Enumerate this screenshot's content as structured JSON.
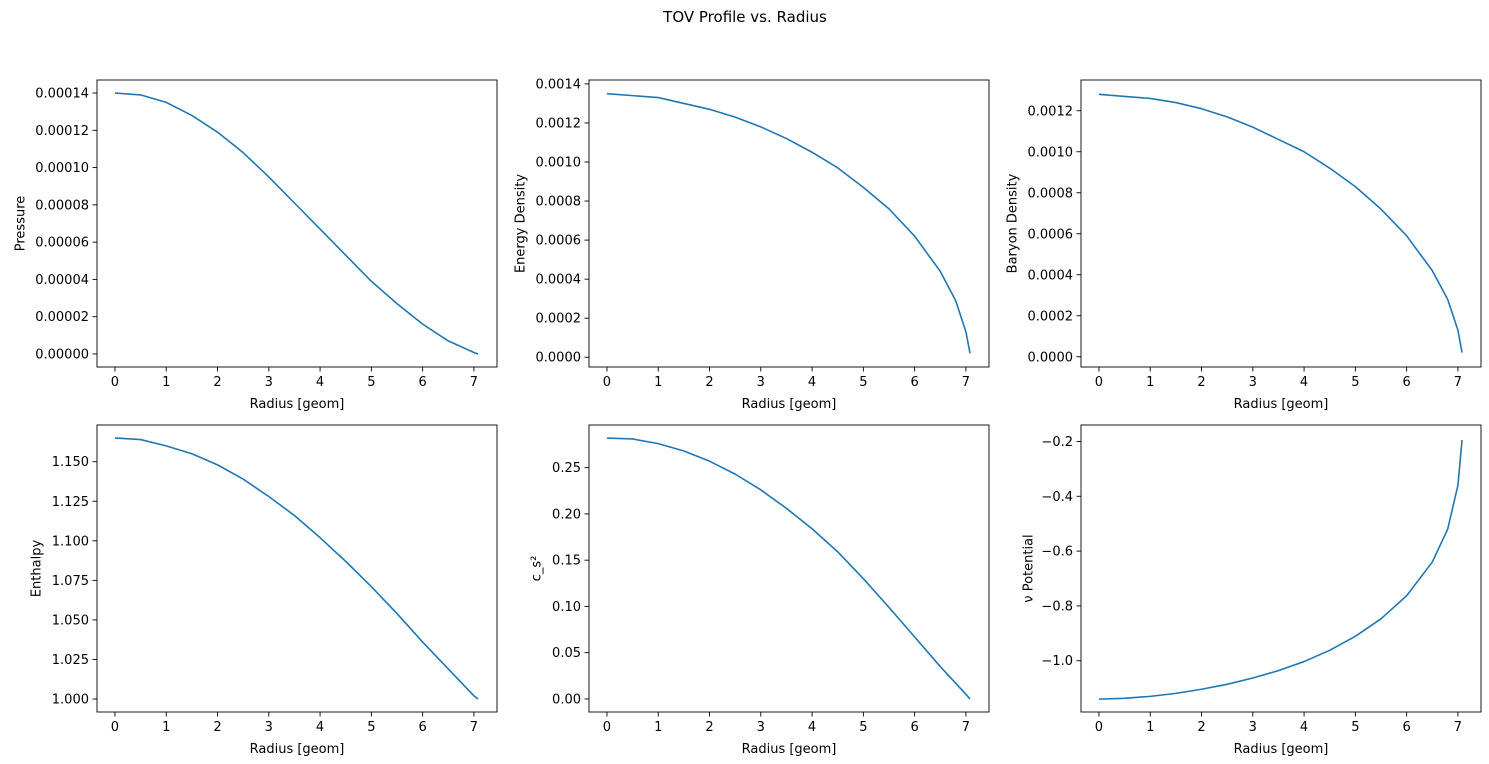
{
  "figure": {
    "suptitle": "TOV Profile vs. Radius",
    "line_color": "#1f77b4"
  },
  "chart_data": [
    {
      "type": "line",
      "title": "",
      "xlabel": "Radius [geom]",
      "ylabel": "Pressure",
      "xlim": [
        -0.35,
        7.45
      ],
      "ylim": [
        -7e-06,
        0.000147
      ],
      "xticks": [
        0,
        1,
        2,
        3,
        4,
        5,
        6,
        7
      ],
      "xtick_labels": [
        "0",
        "1",
        "2",
        "3",
        "4",
        "5",
        "6",
        "7"
      ],
      "yticks": [
        0,
        2e-05,
        4e-05,
        6e-05,
        8e-05,
        0.0001,
        0.00012,
        0.00014
      ],
      "ytick_labels": [
        "0.00000",
        "0.00002",
        "0.00004",
        "0.00006",
        "0.00008",
        "0.00010",
        "0.00012",
        "0.00014"
      ],
      "grid": false,
      "series": [
        {
          "x": [
            0,
            0.5,
            1,
            1.5,
            2,
            2.5,
            3,
            3.5,
            4,
            4.5,
            5,
            5.5,
            6,
            6.5,
            7,
            7.08
          ],
          "y": [
            0.00014,
            0.000139,
            0.000135,
            0.000128,
            0.000119,
            0.000108,
            9.5e-05,
            8.1e-05,
            6.7e-05,
            5.3e-05,
            3.9e-05,
            2.7e-05,
            1.6e-05,
            7e-06,
            8e-07,
            0.0
          ]
        }
      ]
    },
    {
      "type": "line",
      "title": "",
      "xlabel": "Radius [geom]",
      "ylabel": "Energy Density",
      "xlim": [
        -0.35,
        7.45
      ],
      "ylim": [
        -5e-05,
        0.00142
      ],
      "xticks": [
        0,
        1,
        2,
        3,
        4,
        5,
        6,
        7
      ],
      "xtick_labels": [
        "0",
        "1",
        "2",
        "3",
        "4",
        "5",
        "6",
        "7"
      ],
      "yticks": [
        0,
        0.0002,
        0.0004,
        0.0006,
        0.0008,
        0.001,
        0.0012,
        0.0014
      ],
      "ytick_labels": [
        "0.0000",
        "0.0002",
        "0.0004",
        "0.0006",
        "0.0008",
        "0.0010",
        "0.0012",
        "0.0014"
      ],
      "grid": false,
      "series": [
        {
          "x": [
            0,
            0.5,
            1,
            1.5,
            2,
            2.5,
            3,
            3.5,
            4,
            4.5,
            5,
            5.5,
            6,
            6.5,
            6.8,
            7.0,
            7.08
          ],
          "y": [
            0.00135,
            0.00134,
            0.00133,
            0.0013,
            0.00127,
            0.00123,
            0.00118,
            0.00112,
            0.00105,
            0.00097,
            0.00087,
            0.00076,
            0.00062,
            0.00044,
            0.00029,
            0.00013,
            2e-05
          ]
        }
      ]
    },
    {
      "type": "line",
      "title": "",
      "xlabel": "Radius [geom]",
      "ylabel": "Baryon Density",
      "xlim": [
        -0.35,
        7.45
      ],
      "ylim": [
        -5e-05,
        0.00135
      ],
      "xticks": [
        0,
        1,
        2,
        3,
        4,
        5,
        6,
        7
      ],
      "xtick_labels": [
        "0",
        "1",
        "2",
        "3",
        "4",
        "5",
        "6",
        "7"
      ],
      "yticks": [
        0,
        0.0002,
        0.0004,
        0.0006,
        0.0008,
        0.001,
        0.0012
      ],
      "ytick_labels": [
        "0.0000",
        "0.0002",
        "0.0004",
        "0.0006",
        "0.0008",
        "0.0010",
        "0.0012"
      ],
      "grid": false,
      "series": [
        {
          "x": [
            0,
            0.5,
            1,
            1.5,
            2,
            2.5,
            3,
            3.5,
            4,
            4.5,
            5,
            5.5,
            6,
            6.5,
            6.8,
            7.0,
            7.08
          ],
          "y": [
            0.00128,
            0.00127,
            0.00126,
            0.00124,
            0.00121,
            0.00117,
            0.00112,
            0.00106,
            0.001,
            0.00092,
            0.00083,
            0.00072,
            0.00059,
            0.00042,
            0.00028,
            0.00013,
            2e-05
          ]
        }
      ]
    },
    {
      "type": "line",
      "title": "",
      "xlabel": "Radius [geom]",
      "ylabel": "Enthalpy",
      "xlim": [
        -0.35,
        7.45
      ],
      "ylim": [
        0.9918,
        1.1732
      ],
      "xticks": [
        0,
        1,
        2,
        3,
        4,
        5,
        6,
        7
      ],
      "xtick_labels": [
        "0",
        "1",
        "2",
        "3",
        "4",
        "5",
        "6",
        "7"
      ],
      "yticks": [
        1.0,
        1.025,
        1.05,
        1.075,
        1.1,
        1.125,
        1.15
      ],
      "ytick_labels": [
        "1.000",
        "1.025",
        "1.050",
        "1.075",
        "1.100",
        "1.125",
        "1.150"
      ],
      "grid": false,
      "series": [
        {
          "x": [
            0,
            0.5,
            1,
            1.5,
            2,
            2.5,
            3,
            3.5,
            4,
            4.5,
            5,
            5.5,
            6,
            6.5,
            7,
            7.08
          ],
          "y": [
            1.165,
            1.164,
            1.16,
            1.155,
            1.148,
            1.139,
            1.128,
            1.116,
            1.102,
            1.087,
            1.071,
            1.054,
            1.036,
            1.019,
            1.002,
            1.0
          ]
        }
      ]
    },
    {
      "type": "line",
      "title": "",
      "xlabel": "Radius [geom]",
      "ylabel": "c_s²",
      "xlim": [
        -0.35,
        7.45
      ],
      "ylim": [
        -0.0141,
        0.2961
      ],
      "xticks": [
        0,
        1,
        2,
        3,
        4,
        5,
        6,
        7
      ],
      "xtick_labels": [
        "0",
        "1",
        "2",
        "3",
        "4",
        "5",
        "6",
        "7"
      ],
      "yticks": [
        0,
        0.05,
        0.1,
        0.15,
        0.2,
        0.25
      ],
      "ytick_labels": [
        "0.00",
        "0.05",
        "0.10",
        "0.15",
        "0.20",
        "0.25"
      ],
      "grid": false,
      "series": [
        {
          "x": [
            0,
            0.5,
            1,
            1.5,
            2,
            2.5,
            3,
            3.5,
            4,
            4.5,
            5,
            5.5,
            6,
            6.5,
            7,
            7.08
          ],
          "y": [
            0.282,
            0.281,
            0.276,
            0.268,
            0.257,
            0.243,
            0.226,
            0.206,
            0.184,
            0.159,
            0.13,
            0.099,
            0.067,
            0.035,
            0.005,
            0.0
          ]
        }
      ]
    },
    {
      "type": "line",
      "title": "",
      "xlabel": "Radius [geom]",
      "ylabel": "ν Potential",
      "xlim": [
        -0.35,
        7.45
      ],
      "ylim": [
        -1.187,
        -0.14
      ],
      "xticks": [
        0,
        1,
        2,
        3,
        4,
        5,
        6,
        7
      ],
      "xtick_labels": [
        "0",
        "1",
        "2",
        "3",
        "4",
        "5",
        "6",
        "7"
      ],
      "yticks": [
        -1.0,
        -0.8,
        -0.6,
        -0.4,
        -0.2
      ],
      "ytick_labels": [
        "−1.0",
        "−0.8",
        "−0.6",
        "−0.4",
        "−0.2"
      ],
      "grid": false,
      "series": [
        {
          "x": [
            0,
            0.5,
            1,
            1.5,
            2,
            2.5,
            3,
            3.5,
            4,
            4.5,
            5,
            5.5,
            6,
            6.5,
            6.8,
            7.0,
            7.08
          ],
          "y": [
            -1.14,
            -1.137,
            -1.13,
            -1.119,
            -1.104,
            -1.086,
            -1.063,
            -1.036,
            -1.003,
            -0.962,
            -0.911,
            -0.847,
            -0.763,
            -0.64,
            -0.52,
            -0.36,
            -0.195
          ]
        }
      ]
    }
  ]
}
